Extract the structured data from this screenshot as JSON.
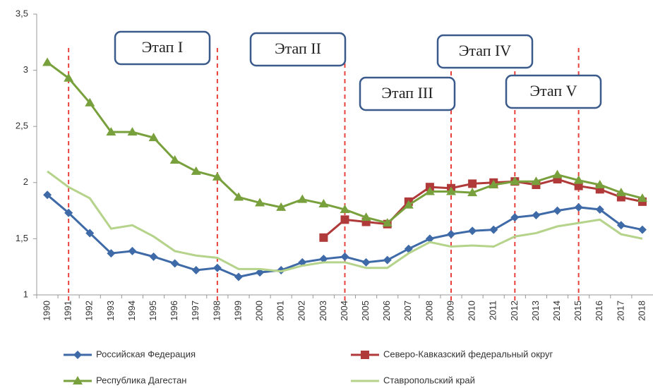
{
  "chart_data": {
    "type": "line",
    "categories": [
      "1990",
      "1991",
      "1992",
      "1993",
      "1994",
      "1995",
      "1996",
      "1997",
      "1998",
      "1999",
      "2000",
      "2001",
      "2002",
      "2003",
      "2004",
      "2005",
      "2006",
      "2007",
      "2008",
      "2009",
      "2010",
      "2011",
      "2012",
      "2013",
      "2014",
      "2015",
      "2016",
      "2017",
      "2018"
    ],
    "series": [
      {
        "name": "Российская Федерация",
        "color": "#3f6aa8",
        "marker": "diamond",
        "values": [
          1.89,
          1.73,
          1.55,
          1.37,
          1.39,
          1.34,
          1.28,
          1.22,
          1.24,
          1.16,
          1.2,
          1.22,
          1.29,
          1.32,
          1.34,
          1.29,
          1.31,
          1.41,
          1.5,
          1.54,
          1.57,
          1.58,
          1.69,
          1.71,
          1.75,
          1.78,
          1.76,
          1.62,
          1.58
        ]
      },
      {
        "name": "Северо-Кавказский федеральный округ",
        "color": "#b03a3a",
        "marker": "square",
        "values": [
          null,
          null,
          null,
          null,
          null,
          null,
          null,
          null,
          null,
          null,
          null,
          null,
          null,
          1.51,
          1.67,
          1.65,
          1.63,
          1.83,
          1.96,
          1.95,
          1.99,
          2.0,
          2.01,
          1.98,
          2.03,
          1.97,
          1.94,
          1.87,
          1.83
        ]
      },
      {
        "name": "Республика Дагестан",
        "color": "#78a03c",
        "marker": "triangle",
        "values": [
          3.07,
          2.93,
          2.71,
          2.45,
          2.45,
          2.4,
          2.2,
          2.1,
          2.05,
          1.87,
          1.82,
          1.78,
          1.85,
          1.81,
          1.76,
          1.69,
          1.64,
          1.8,
          1.92,
          1.92,
          1.91,
          1.98,
          2.01,
          2.01,
          2.07,
          2.02,
          1.98,
          1.91,
          1.86
        ]
      },
      {
        "name": "Ставропольский край",
        "color": "#b5d38a",
        "values": [
          2.1,
          1.96,
          1.86,
          1.59,
          1.62,
          1.52,
          1.39,
          1.35,
          1.33,
          1.23,
          1.23,
          1.21,
          1.26,
          1.29,
          1.29,
          1.24,
          1.24,
          1.37,
          1.47,
          1.43,
          1.44,
          1.43,
          1.52,
          1.55,
          1.61,
          1.64,
          1.67,
          1.54,
          1.5
        ]
      }
    ],
    "ylim": [
      1,
      3.5
    ],
    "yticks": [
      1,
      {
        "value": 1.5,
        "label": "1,5"
      },
      2,
      {
        "value": 2.5,
        "label": "2,5"
      },
      3,
      {
        "value": 3.5,
        "label": "3,5"
      }
    ],
    "boundaries": [
      "1991",
      "1998",
      "2004",
      "2009",
      "2012",
      "2015"
    ],
    "boundary_color": "#e8413c",
    "stages": [
      "Этап I",
      "Этап II",
      "Этап III",
      "Этап IV",
      "Этап V"
    ]
  }
}
